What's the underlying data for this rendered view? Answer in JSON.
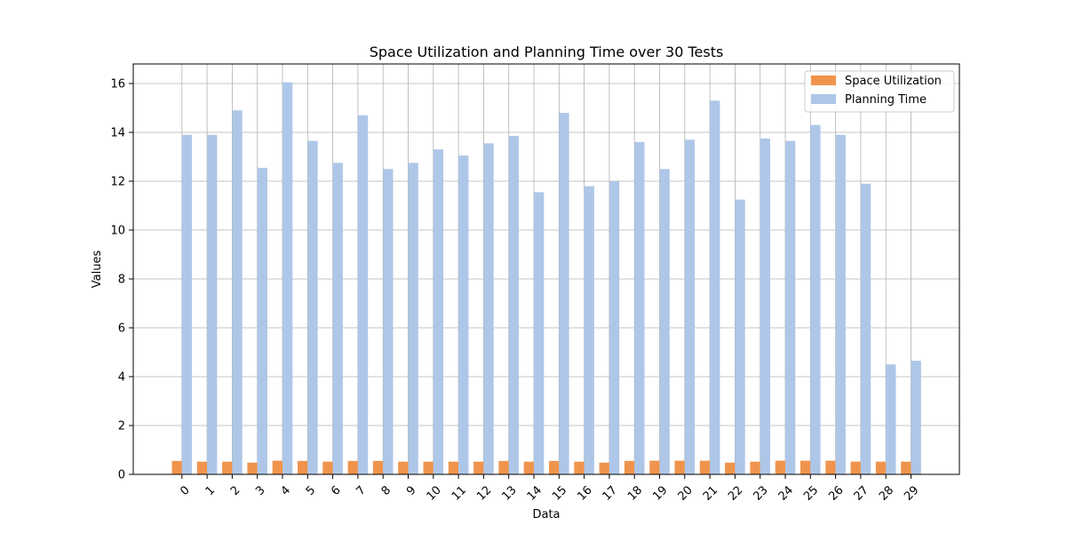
{
  "chart_data": {
    "type": "bar",
    "title": "Space Utilization and Planning Time over 30 Tests",
    "xlabel": "Data",
    "ylabel": "Values",
    "ylim": [
      0,
      16.8
    ],
    "yticks": [
      0,
      2,
      4,
      6,
      8,
      10,
      12,
      14,
      16
    ],
    "grid": true,
    "legend_position": "top-right",
    "categories": [
      "0",
      "1",
      "2",
      "3",
      "4",
      "5",
      "6",
      "7",
      "8",
      "9",
      "10",
      "11",
      "12",
      "13",
      "14",
      "15",
      "16",
      "17",
      "18",
      "19",
      "20",
      "21",
      "22",
      "23",
      "24",
      "25",
      "26",
      "27",
      "28",
      "29"
    ],
    "series": [
      {
        "name": "Space Utilization",
        "color": "#f0944d",
        "values": [
          0.55,
          0.52,
          0.52,
          0.48,
          0.56,
          0.55,
          0.52,
          0.55,
          0.55,
          0.52,
          0.52,
          0.52,
          0.52,
          0.55,
          0.52,
          0.55,
          0.52,
          0.48,
          0.55,
          0.56,
          0.56,
          0.56,
          0.48,
          0.52,
          0.56,
          0.56,
          0.56,
          0.52,
          0.52,
          0.52
        ]
      },
      {
        "name": "Planning Time",
        "color": "#aec7e8",
        "values": [
          13.9,
          13.9,
          14.9,
          12.55,
          16.05,
          13.65,
          12.75,
          14.7,
          12.5,
          12.75,
          13.3,
          13.05,
          13.55,
          13.85,
          11.55,
          14.8,
          11.8,
          12.0,
          13.6,
          12.5,
          13.7,
          15.3,
          11.25,
          13.75,
          13.65,
          14.3,
          13.9,
          11.9,
          4.5,
          4.65
        ]
      }
    ]
  }
}
